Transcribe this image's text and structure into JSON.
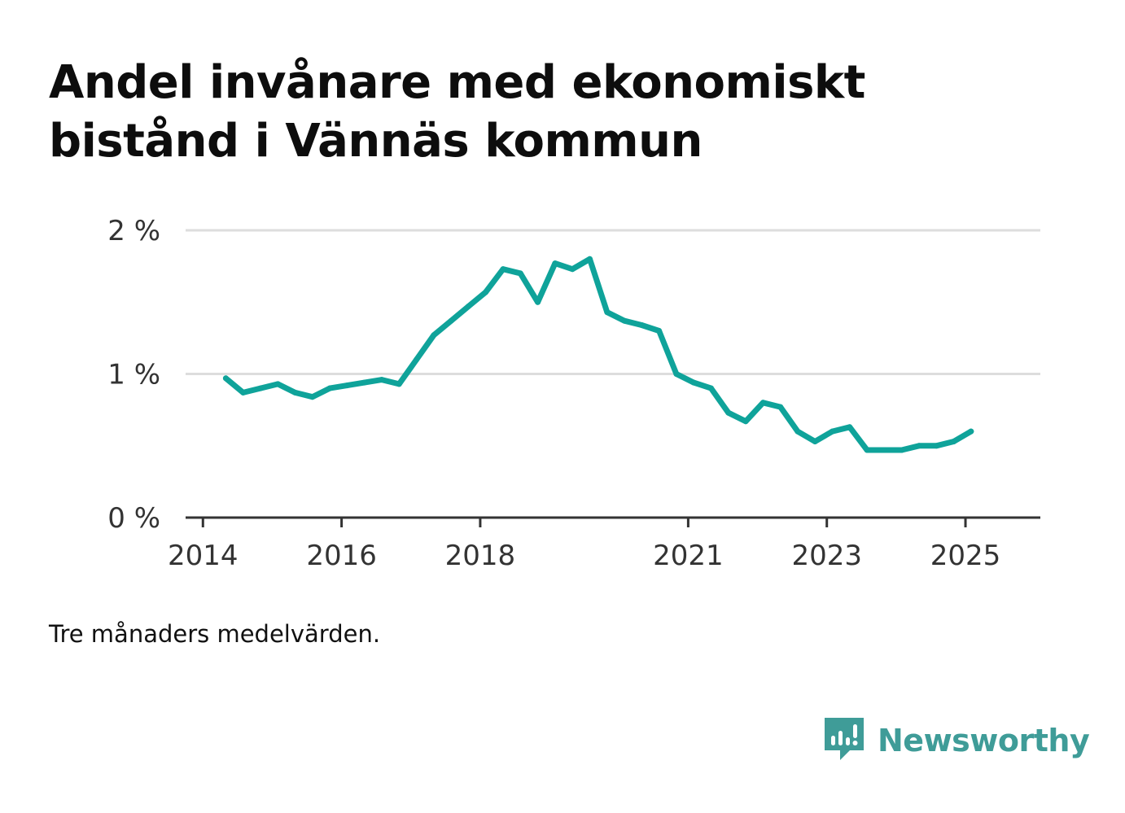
{
  "title": "Andel invånare med ekonomiskt bistånd i Vännäs kommun",
  "note": "Tre månaders medelvärden.",
  "brand": {
    "name": "Newsworthy",
    "icon": "newsworthy-logo-icon"
  },
  "colors": {
    "line": "#0fa39a",
    "grid": "#dddddd",
    "axis": "#333333",
    "brand": "#3f9c98"
  },
  "chart_data": {
    "type": "line",
    "title": "Andel invånare med ekonomiskt bistånd i Vännäs kommun",
    "xlabel": "",
    "ylabel": "",
    "ylim": [
      0,
      2
    ],
    "xlim": [
      2013.75,
      2026.08
    ],
    "grid": true,
    "legend": "none",
    "x_ticks": [
      {
        "value": 2014,
        "label": "2014"
      },
      {
        "value": 2016,
        "label": "2016"
      },
      {
        "value": 2018,
        "label": "2018"
      },
      {
        "value": 2021,
        "label": "2021"
      },
      {
        "value": 2023,
        "label": "2023"
      },
      {
        "value": 2025,
        "label": "2025"
      }
    ],
    "y_ticks": [
      {
        "value": 0,
        "label": "0 %"
      },
      {
        "value": 1,
        "label": "1 %"
      },
      {
        "value": 2,
        "label": "2 %"
      }
    ],
    "series": [
      {
        "x": [
          2014.33,
          2014.58,
          2014.83,
          2015.08,
          2015.33,
          2015.58,
          2015.83,
          2016.08,
          2016.33,
          2016.58,
          2016.83,
          2017.08,
          2017.33,
          2017.58,
          2017.83,
          2018.08,
          2018.33,
          2018.58,
          2018.83,
          2019.08,
          2019.33,
          2019.58,
          2019.83,
          2020.08,
          2020.33,
          2020.58,
          2020.83,
          2021.08,
          2021.33,
          2021.58,
          2021.83,
          2022.08,
          2022.33,
          2022.58,
          2022.83,
          2023.08,
          2023.33,
          2023.58,
          2023.83,
          2024.08,
          2024.33,
          2024.58,
          2024.83,
          2025.08
        ],
        "values": [
          0.97,
          0.87,
          0.9,
          0.93,
          0.87,
          0.84,
          0.9,
          0.92,
          0.94,
          0.96,
          0.93,
          1.1,
          1.27,
          1.37,
          1.47,
          1.57,
          1.73,
          1.7,
          1.5,
          1.77,
          1.73,
          1.8,
          1.43,
          1.37,
          1.34,
          1.3,
          1.0,
          0.94,
          0.9,
          0.73,
          0.67,
          0.8,
          0.77,
          0.6,
          0.53,
          0.6,
          0.63,
          0.47,
          0.47,
          0.47,
          0.5,
          0.5,
          0.53,
          0.6
        ]
      }
    ]
  }
}
